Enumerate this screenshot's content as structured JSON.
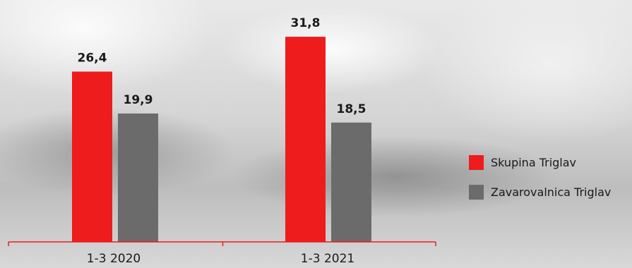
{
  "chart_data": {
    "type": "bar",
    "categories": [
      "1-3 2020",
      "1-3 2021"
    ],
    "series": [
      {
        "name": "Skupina Triglav",
        "color": "#ee1c1c",
        "values": [
          26.4,
          31.8
        ],
        "labels": [
          "26,4",
          "31,8"
        ]
      },
      {
        "name": "Zavarovalnica Triglav",
        "color": "#6b6b6b",
        "values": [
          19.9,
          18.5
        ],
        "labels": [
          "19,9",
          "18,5"
        ]
      }
    ],
    "ylim": [
      0,
      34
    ],
    "grid": false,
    "legend_position": "right",
    "axis_color": "#ee1c1c"
  }
}
